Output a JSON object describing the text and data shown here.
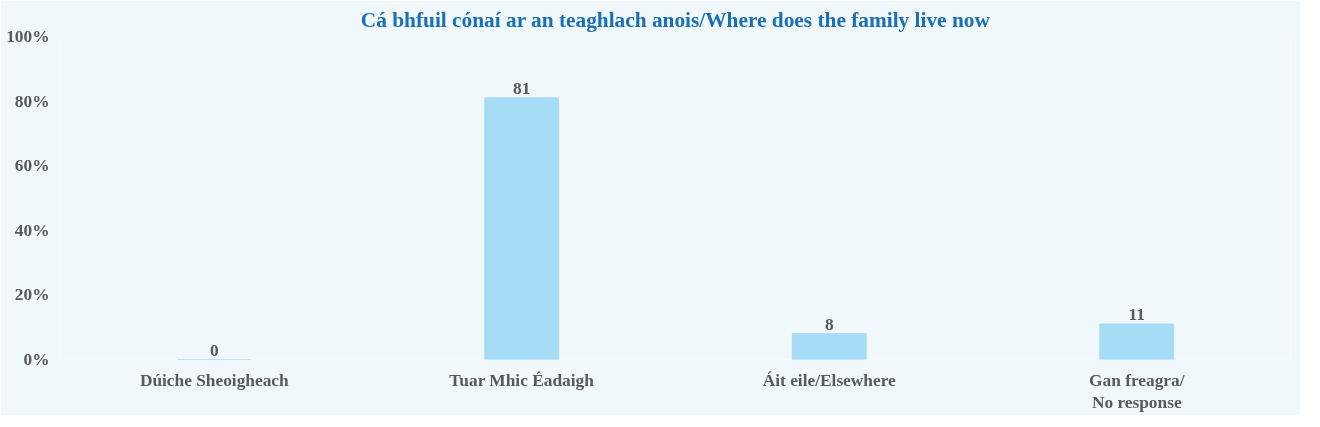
{
  "chart_data": {
    "type": "bar",
    "title": "Cá bhfuil cónaí ar an teaghlach anois/Where does the family live now",
    "categories": [
      "Dúiche Sheoigheach",
      "Tuar Mhic Éadaigh",
      "Áit eile/Elsewhere",
      "Gan freagra/\nNo response"
    ],
    "values": [
      0,
      81,
      8,
      11
    ],
    "color": "#a6dcf5",
    "data_labels": true,
    "grid": false,
    "ylim": [
      0,
      100
    ],
    "yticks": [
      {
        "value": 0,
        "label": "0%"
      },
      {
        "value": 20,
        "label": "20%"
      },
      {
        "value": 40,
        "label": "40%"
      },
      {
        "value": 60,
        "label": "60%"
      },
      {
        "value": 80,
        "label": "80%"
      },
      {
        "value": 100,
        "label": "100%"
      }
    ]
  }
}
